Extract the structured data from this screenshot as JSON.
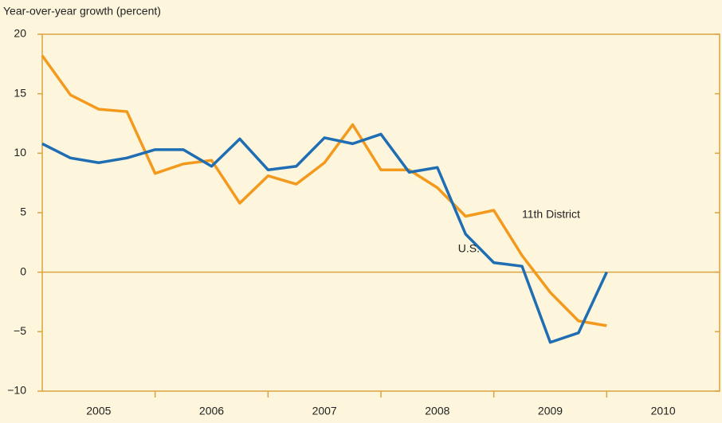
{
  "chart_data": {
    "type": "line",
    "y_label": "Year-over-year growth (percent)",
    "x": [
      2005,
      2005.25,
      2005.5,
      2005.75,
      2006,
      2006.25,
      2006.5,
      2006.75,
      2007,
      2007.25,
      2007.5,
      2007.75,
      2008,
      2008.25,
      2008.5,
      2008.75,
      2009,
      2009.25,
      2009.5,
      2009.75,
      2010
    ],
    "series": [
      {
        "name": "11th District",
        "color": "#f39a1e",
        "values": [
          18.2,
          14.9,
          13.7,
          13.5,
          8.3,
          9.1,
          9.4,
          5.8,
          8.1,
          7.4,
          9.2,
          12.4,
          8.6,
          8.6,
          7.1,
          4.7,
          5.2,
          1.4,
          -1.7,
          -4.1,
          -4.5
        ]
      },
      {
        "name": "U.S.",
        "color": "#1f6db3",
        "values": [
          10.8,
          9.6,
          9.2,
          9.6,
          10.3,
          10.3,
          8.9,
          11.2,
          8.6,
          8.9,
          11.3,
          10.8,
          11.6,
          8.4,
          8.8,
          3.2,
          0.8,
          0.5,
          -5.9,
          -5.1,
          0.0
        ]
      }
    ],
    "xlim": [
      2005,
      2011
    ],
    "xticks": [
      {
        "value": 2005.5,
        "label": "2005"
      },
      {
        "value": 2006.5,
        "label": "2006"
      },
      {
        "value": 2007.5,
        "label": "2007"
      },
      {
        "value": 2008.5,
        "label": "2008"
      },
      {
        "value": 2009.5,
        "label": "2009"
      },
      {
        "value": 2010.5,
        "label": "2010"
      }
    ],
    "ylim": [
      -10,
      20
    ],
    "yticks": [
      {
        "value": -10,
        "label": "−10"
      },
      {
        "value": -5,
        "label": "−5"
      },
      0,
      5,
      10,
      15,
      20
    ],
    "axis_color": "#d9a441"
  }
}
